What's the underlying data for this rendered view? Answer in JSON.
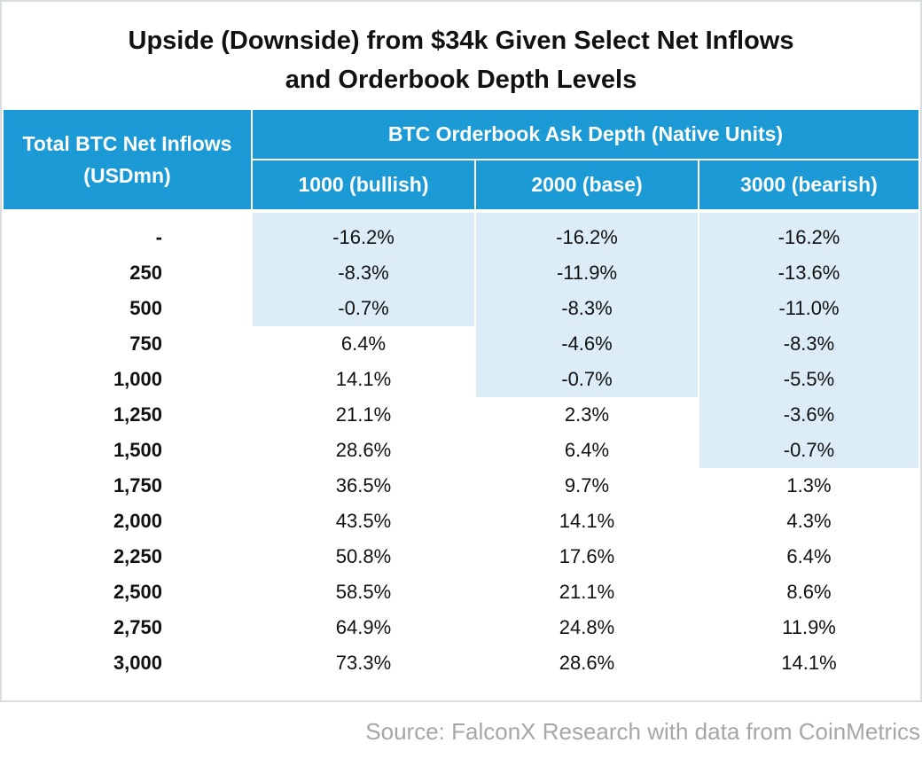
{
  "title": {
    "line1": "Upside (Downside) from $34k Given Select Net Inflows",
    "line2": "and Orderbook Depth Levels"
  },
  "source": "Source: FalconX Research with data from CoinMetrics",
  "colors": {
    "header": "#1c9ad6",
    "shade": "#dcedf8",
    "source_text": "#a6a6a6"
  },
  "chart_data": {
    "type": "table",
    "row_header": "Total BTC Net Inflows (USDmn)",
    "column_group_header": "BTC Orderbook Ask Depth (Native Units)",
    "columns": [
      "1000 (bullish)",
      "2000 (base)",
      "3000 (bearish)"
    ],
    "rows": [
      "-",
      "250",
      "500",
      "750",
      "1,000",
      "1,250",
      "1,500",
      "1,750",
      "2,000",
      "2,250",
      "2,500",
      "2,750",
      "3,000"
    ],
    "values": [
      [
        "-16.2%",
        "-16.2%",
        "-16.2%"
      ],
      [
        "-8.3%",
        "-11.9%",
        "-13.6%"
      ],
      [
        "-0.7%",
        "-8.3%",
        "-11.0%"
      ],
      [
        "6.4%",
        "-4.6%",
        "-8.3%"
      ],
      [
        "14.1%",
        "-0.7%",
        "-5.5%"
      ],
      [
        "21.1%",
        "2.3%",
        "-3.6%"
      ],
      [
        "28.6%",
        "6.4%",
        "-0.7%"
      ],
      [
        "36.5%",
        "9.7%",
        "1.3%"
      ],
      [
        "43.5%",
        "14.1%",
        "4.3%"
      ],
      [
        "50.8%",
        "17.6%",
        "6.4%"
      ],
      [
        "58.5%",
        "21.1%",
        "8.6%"
      ],
      [
        "64.9%",
        "24.8%",
        "11.9%"
      ],
      [
        "73.3%",
        "28.6%",
        "14.1%"
      ]
    ],
    "shading": "cells with negative values are shaded light blue"
  }
}
